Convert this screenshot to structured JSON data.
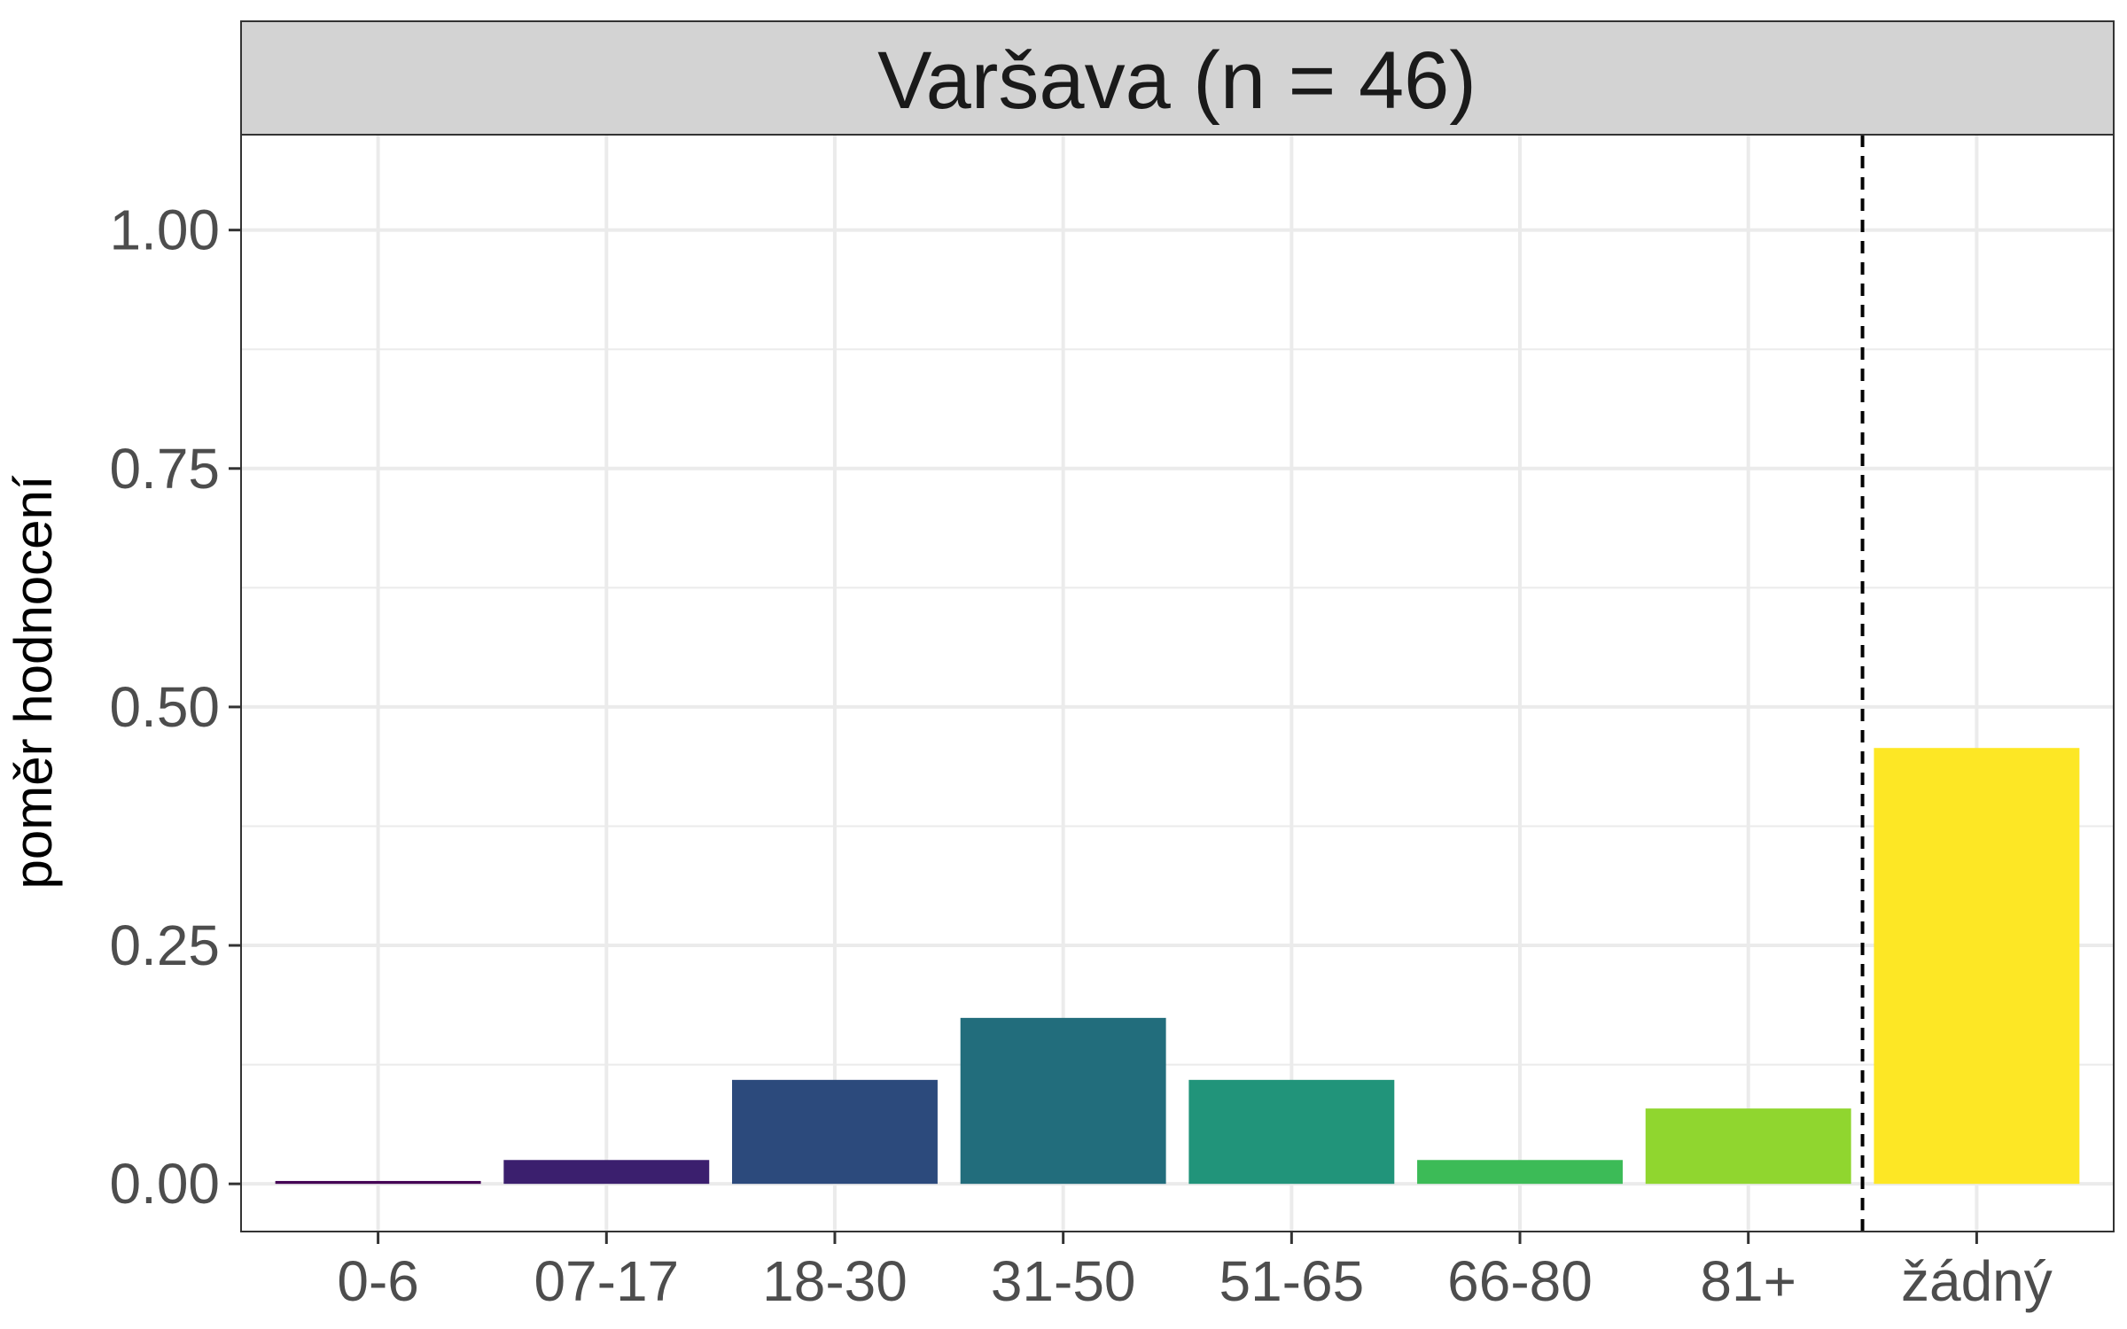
{
  "chart_data": {
    "type": "bar",
    "title": "Varšava (n = 46)",
    "xlabel": "",
    "ylabel": "poměr hodnocení",
    "categories": [
      "0-6",
      "07-17",
      "18-30",
      "31-50",
      "51-65",
      "66-80",
      "81+",
      "žádný"
    ],
    "values": [
      0.003,
      0.025,
      0.109,
      0.174,
      0.109,
      0.025,
      0.079,
      0.457
    ],
    "colors": [
      "#440154",
      "#3b1f6e",
      "#2c4a7c",
      "#226d7c",
      "#21947a",
      "#3cbb57",
      "#90d62f",
      "#fde725"
    ],
    "ylim": [
      -0.05,
      1.1
    ],
    "yticks": [
      0.0,
      0.25,
      0.5,
      0.75,
      1.0
    ],
    "ytick_labels": [
      "0.00",
      "0.25",
      "0.50",
      "0.75",
      "1.00"
    ],
    "grid": true,
    "separator": {
      "type": "dashed-vline",
      "between": [
        "81+",
        "žádný"
      ]
    },
    "legend": "none"
  }
}
